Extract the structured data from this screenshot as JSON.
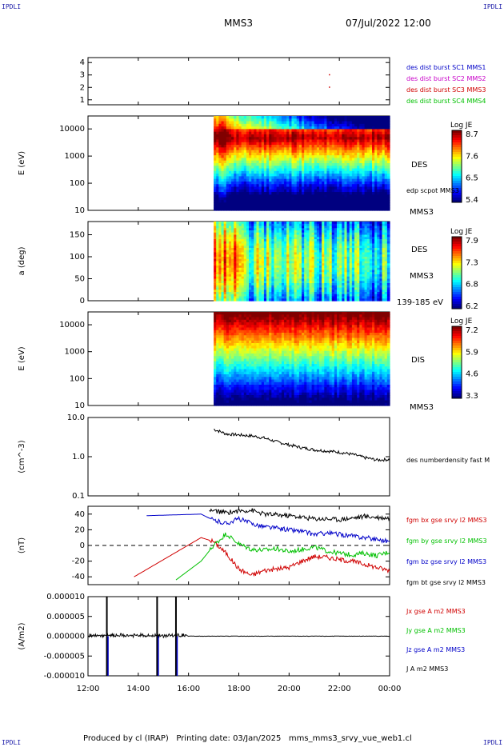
{
  "header": {
    "corner_tl": "IPDLI",
    "corner_tr": "IPDLI",
    "corner_bl": "IPDLI",
    "corner_br": "IPDLI",
    "spacecraft": "MMS3",
    "datetime": "07/Jul/2022 12:00"
  },
  "footer": {
    "text": "Produced by cl (IRAP)   Printing date: 03/Jan/2025   mms_mms3_srvy_vue_web1.cl"
  },
  "colors": {
    "blue": "#0000c8",
    "magenta": "#c800c8",
    "red": "#d00000",
    "green": "#00c000",
    "black": "#000000"
  },
  "chart_data": [
    {
      "type": "scatter",
      "ylim": [
        0.6,
        4.4
      ],
      "yticks": [
        "1",
        "2",
        "3",
        "4"
      ],
      "legend": [
        {
          "label": "des dist burst SC1 MMS1",
          "color": "#0000c8"
        },
        {
          "label": "des dist burst SC2 MMS2",
          "color": "#c800c8"
        },
        {
          "label": "des dist burst SC3 MMS3",
          "color": "#d00000"
        },
        {
          "label": "des dist burst SC4 MMS4",
          "color": "#00c000"
        }
      ],
      "points": [
        {
          "x": "21:35",
          "y": 3
        },
        {
          "x": "21:35",
          "y": 2
        }
      ]
    },
    {
      "type": "heatmap",
      "ylabel": "E (eV)",
      "yscale": "log",
      "ylim": [
        10,
        30000
      ],
      "yticks": [
        "10",
        "100",
        "1000",
        "10000"
      ],
      "data_start": "17:00",
      "colorbar": {
        "title": "Log JE",
        "ticks": [
          "8.7",
          "7.6",
          "6.5",
          "5.4"
        ]
      },
      "right_labels": [
        "DES",
        "edp scpot MMS3",
        "MMS3"
      ]
    },
    {
      "type": "heatmap",
      "ylabel": "a (deg)",
      "ylim": [
        0,
        180
      ],
      "yticks": [
        "0",
        "50",
        "100",
        "150"
      ],
      "data_start": "17:00",
      "colorbar": {
        "title": "Log JE",
        "ticks": [
          "7.9",
          "7.3",
          "6.8",
          "6.2"
        ]
      },
      "right_labels": [
        "DES",
        "MMS3",
        "139-185 eV"
      ]
    },
    {
      "type": "heatmap",
      "ylabel": "E (eV)",
      "yscale": "log",
      "ylim": [
        10,
        30000
      ],
      "yticks": [
        "10",
        "100",
        "1000",
        "10000"
      ],
      "data_start": "17:00",
      "colorbar": {
        "title": "Log JE",
        "ticks": [
          "7.2",
          "5.9",
          "4.6",
          "3.3"
        ]
      },
      "right_labels": [
        "DIS",
        "MMS3"
      ]
    },
    {
      "type": "line",
      "ylabel": "(cm^-3)",
      "yscale": "log",
      "ylim": [
        0.1,
        10
      ],
      "yticks": [
        "0.1",
        "1.0",
        "10.0"
      ],
      "series": [
        {
          "name": "des numberdensity fast M",
          "color": "#000000",
          "x": [
            "17:00",
            "17:30",
            "18:00",
            "18:30",
            "19:00",
            "19:30",
            "20:00",
            "20:30",
            "21:00",
            "21:30",
            "22:00",
            "22:30",
            "23:00",
            "23:30",
            "00:00"
          ],
          "values": [
            5.0,
            3.8,
            3.6,
            3.4,
            3.0,
            2.4,
            2.0,
            1.7,
            1.5,
            1.4,
            1.3,
            1.15,
            0.95,
            0.82,
            0.85
          ]
        }
      ]
    },
    {
      "type": "line",
      "ylabel": "(nT)",
      "ylim": [
        -50,
        50
      ],
      "yticks": [
        "-40",
        "-20",
        "0",
        "20",
        "40"
      ],
      "series": [
        {
          "name": "fgm bx gse srvy l2 MMS3",
          "color": "#d00000",
          "x": [
            "13:50",
            "16:30",
            "17:00",
            "17:30",
            "18:00",
            "18:30",
            "19:00",
            "19:30",
            "20:00",
            "20:30",
            "21:00",
            "21:30",
            "22:00",
            "22:30",
            "23:00",
            "23:30",
            "00:00"
          ],
          "values": [
            -40,
            10,
            5,
            -10,
            -30,
            -38,
            -32,
            -30,
            -28,
            -20,
            -14,
            -15,
            -18,
            -20,
            -24,
            -28,
            -32
          ]
        },
        {
          "name": "fgm by gse srvy l2 MMS3",
          "color": "#00c000",
          "x": [
            "15:30",
            "16:30",
            "17:00",
            "17:30",
            "18:00",
            "18:30",
            "19:00",
            "19:30",
            "20:00",
            "20:30",
            "21:00",
            "21:30",
            "22:00",
            "22:30",
            "23:00",
            "23:30",
            "00:00"
          ],
          "values": [
            -44,
            -20,
            0,
            15,
            2,
            -5,
            -6,
            -4,
            -8,
            -5,
            -2,
            -7,
            -10,
            -12,
            -10,
            -13,
            -8
          ]
        },
        {
          "name": "fgm bz gse srvy l2 MMS3",
          "color": "#0000c8",
          "x": [
            "14:20",
            "16:30",
            "17:00",
            "17:30",
            "18:00",
            "18:30",
            "19:00",
            "19:30",
            "20:00",
            "20:30",
            "21:00",
            "21:30",
            "22:00",
            "22:30",
            "23:00",
            "23:30",
            "00:00"
          ],
          "values": [
            38,
            40,
            32,
            28,
            34,
            28,
            24,
            22,
            20,
            18,
            14,
            16,
            14,
            12,
            10,
            8,
            5
          ]
        },
        {
          "name": "fgm bt gse srvy l2 MMS3",
          "color": "#000000",
          "x": [
            "16:50",
            "17:00",
            "17:30",
            "18:00",
            "18:30",
            "19:00",
            "19:30",
            "20:00",
            "20:30",
            "21:00",
            "21:30",
            "22:00",
            "22:30",
            "23:00",
            "23:30",
            "00:00"
          ],
          "values": [
            45,
            44,
            42,
            44,
            45,
            40,
            39,
            38,
            36,
            34,
            34,
            33,
            35,
            37,
            36,
            35
          ]
        }
      ]
    },
    {
      "type": "line",
      "ylabel": "(A/m2)",
      "ylim": [
        -1e-05,
        1e-05
      ],
      "yticks": [
        "-0.000010",
        "-0.000005",
        "0.000000",
        "0.000005",
        "0.000010"
      ],
      "series": [
        {
          "name": "Jx gse A m2 MMS3",
          "color": "#d00000"
        },
        {
          "name": "Jy gse A m2 MMS3",
          "color": "#00c000"
        },
        {
          "name": "Jz gse A m2 MMS3",
          "color": "#0000c8"
        },
        {
          "name": "J A m2 MMS3",
          "color": "#000000"
        }
      ],
      "spikes_x": [
        "12:45",
        "14:45",
        "15:30"
      ]
    }
  ],
  "xaxis": {
    "tick_labels": [
      "12:00",
      "14:00",
      "16:00",
      "18:00",
      "20:00",
      "22:00",
      "00:00"
    ]
  }
}
